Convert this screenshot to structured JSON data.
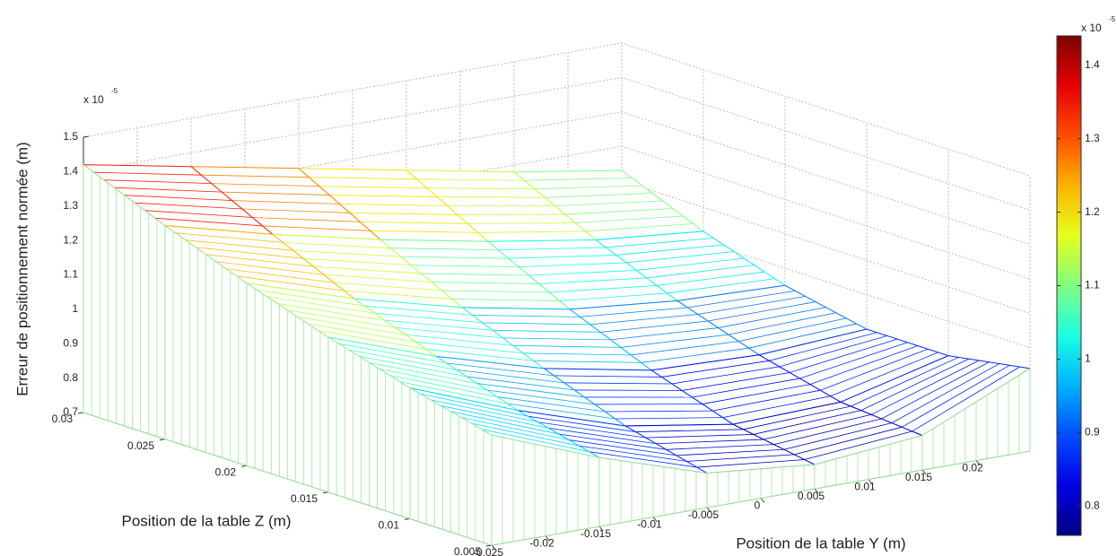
{
  "chart_data": {
    "type": "mesh",
    "xlabel": "Position de la table Y (m)",
    "ylabel": "Position de la table Z (m)",
    "zlabel": "Erreur de positionnement normée (m)",
    "z_scale_label": "x 10",
    "z_scale_exponent": "-5",
    "x": [
      -0.025,
      -0.015,
      -0.005,
      0.005,
      0.015,
      0.025
    ],
    "y": [
      0.005,
      0.01,
      0.015,
      0.02,
      0.025,
      0.03
    ],
    "z": [
      [
        1.02,
        0.9,
        0.8,
        0.77,
        0.8,
        0.94
      ],
      [
        1.08,
        0.96,
        0.86,
        0.81,
        0.82,
        0.9
      ],
      [
        1.15,
        1.04,
        0.95,
        0.89,
        0.88,
        0.9
      ],
      [
        1.23,
        1.13,
        1.05,
        0.99,
        0.96,
        0.95
      ],
      [
        1.32,
        1.24,
        1.17,
        1.11,
        1.06,
        1.03
      ],
      [
        1.42,
        1.36,
        1.3,
        1.24,
        1.18,
        1.13
      ]
    ],
    "xlim": [
      -0.025,
      0.025
    ],
    "xticks": [
      -0.025,
      -0.02,
      -0.015,
      -0.01,
      -0.005,
      0,
      0.005,
      0.01,
      0.015,
      0.02
    ],
    "ylim": [
      0.005,
      0.03
    ],
    "yticks": [
      0.005,
      0.01,
      0.015,
      0.02,
      0.025,
      0.03
    ],
    "zlim": [
      0.7,
      1.5
    ],
    "zticks": [
      0.7,
      0.8,
      0.9,
      1,
      1.1,
      1.2,
      1.3,
      1.4,
      1.5
    ],
    "grid": true,
    "colormap": "jet",
    "skirt_color": "#9be89b",
    "colorbar": {
      "clim": [
        0.76,
        1.44
      ],
      "ticks": [
        0.8,
        0.9,
        1,
        1.1,
        1.2,
        1.3,
        1.4
      ],
      "scale_label": "x 10",
      "scale_exponent": "-5"
    }
  }
}
